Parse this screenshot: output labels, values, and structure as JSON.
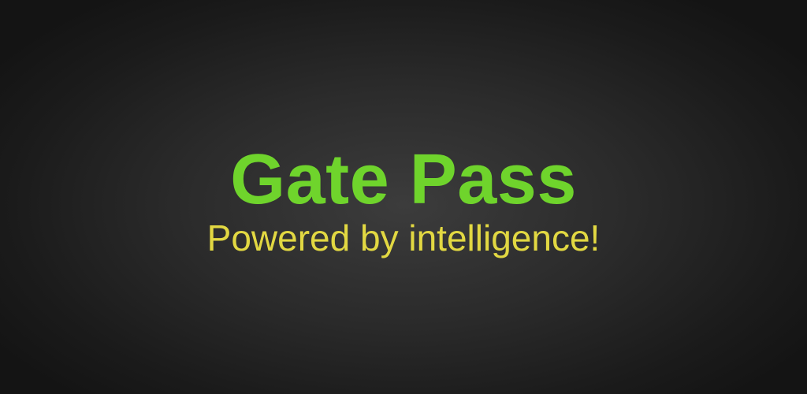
{
  "banner": {
    "title": "Gate Pass",
    "tagline": "Powered by intelligence!"
  },
  "colors": {
    "title": "#6fd42c",
    "tagline": "#e2d842",
    "background_center": "#3c3c3c",
    "background_edge": "#141414"
  }
}
